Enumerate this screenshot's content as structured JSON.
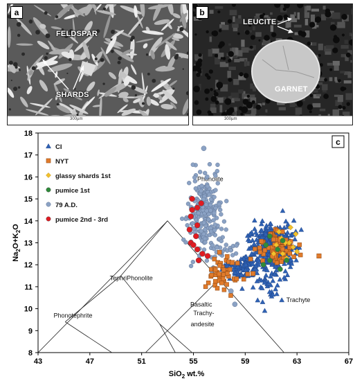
{
  "panel_a": {
    "label": "a",
    "labels": {
      "feldspar": "FELDSPAR",
      "shards": "SHARDS"
    },
    "scale": "300µm"
  },
  "panel_b": {
    "label": "b",
    "labels": {
      "leucite": "LEUCITE",
      "garnet": "GARNET"
    },
    "scale": "300µm"
  },
  "chart_data": {
    "type": "scatter",
    "panel_label": "c",
    "xlabel": "SiO2 wt.%",
    "ylabel": "Na2O+K2O",
    "xlim": [
      43,
      67
    ],
    "ylim": [
      8,
      18
    ],
    "x_ticks": [
      43,
      47,
      51,
      55,
      59,
      63,
      67
    ],
    "y_ticks": [
      8,
      9,
      10,
      11,
      12,
      13,
      14,
      15,
      16,
      17,
      18
    ],
    "grid": false,
    "legend_position": "top-left",
    "field_labels": [
      {
        "text": "Phonolite",
        "x": 56.3,
        "y": 15.8
      },
      {
        "text": "TephriPhonolite",
        "x": 50.2,
        "y": 11.3
      },
      {
        "text": "Phonotephrite",
        "x": 45.7,
        "y": 9.6
      },
      {
        "text": "Basaltic",
        "x": 55.6,
        "y": 10.1
      },
      {
        "text": "Trachy-",
        "x": 55.8,
        "y": 9.7
      },
      {
        "text": "andesite",
        "x": 55.7,
        "y": 9.2
      },
      {
        "text": "Trachyte",
        "x": 63.1,
        "y": 10.3
      }
    ],
    "tas_boundaries": [
      [
        [
          43,
          8
        ],
        [
          53,
          14
        ],
        [
          62,
          8
        ]
      ],
      [
        [
          45.1,
          9.4
        ],
        [
          48.7,
          8
        ]
      ],
      [
        [
          45.1,
          9.4
        ],
        [
          49.4,
          11.5
        ],
        [
          52.4,
          9.3
        ],
        [
          53.6,
          8
        ]
      ],
      [
        [
          49.4,
          11.5
        ],
        [
          53,
          14
        ]
      ],
      [
        [
          52.4,
          9.3
        ],
        [
          54.9,
          8
        ]
      ],
      [
        [
          51.3,
          8
        ],
        [
          57.6,
          11.7
        ]
      ]
    ],
    "series": [
      {
        "name": "CI",
        "marker": "triangle",
        "color": "#2f62b4",
        "clusters": [
          {
            "cx": 61.2,
            "cy": 12.9,
            "sx": 1.1,
            "sy": 0.65,
            "n": 420
          },
          {
            "cx": 58.8,
            "cy": 11.9,
            "sx": 0.9,
            "sy": 0.35,
            "n": 90
          },
          {
            "cx": 60.8,
            "cy": 11.0,
            "sx": 1.2,
            "sy": 0.6,
            "n": 35
          }
        ]
      },
      {
        "name": "NYT",
        "marker": "square",
        "color": "#e07b2c",
        "clusters": [
          {
            "cx": 57.4,
            "cy": 11.6,
            "sx": 0.9,
            "sy": 0.45,
            "n": 45
          },
          {
            "cx": 61.4,
            "cy": 12.8,
            "sx": 1.0,
            "sy": 0.55,
            "n": 70
          }
        ],
        "points": [
          [
            64.7,
            12.4
          ],
          [
            59.6,
            11.6
          ],
          [
            58.0,
            12.1
          ]
        ]
      },
      {
        "name": "glassy shards 1st",
        "marker": "diamond",
        "color": "#f2c12e",
        "points": [
          [
            61.8,
            13.2
          ],
          [
            62.4,
            13.0
          ],
          [
            62.7,
            12.8
          ],
          [
            61.9,
            12.5
          ],
          [
            62.9,
            13.4
          ],
          [
            61.4,
            12.9
          ],
          [
            62.2,
            12.3
          ],
          [
            61.6,
            13.5
          ],
          [
            63.0,
            12.6
          ],
          [
            62.5,
            13.7
          ],
          [
            61.2,
            12.5
          ],
          [
            62.1,
            13.0
          ]
        ]
      },
      {
        "name": "pumice 1st",
        "marker": "circle",
        "color": "#2e8b3a",
        "points": [
          [
            60.6,
            12.9
          ],
          [
            61.5,
            12.7
          ],
          [
            60.9,
            12.2
          ],
          [
            61.9,
            13.1
          ],
          [
            62.2,
            12.2
          ],
          [
            60.4,
            12.0
          ],
          [
            61.7,
            11.8
          ],
          [
            60.9,
            13.3
          ]
        ]
      },
      {
        "name": "79 A.D.",
        "marker": "circle",
        "color": "#8ba2c4",
        "clusters": [
          {
            "cx": 55.9,
            "cy": 14.3,
            "sx": 0.9,
            "sy": 1.35,
            "n": 230
          },
          {
            "cx": 57.5,
            "cy": 12.6,
            "sx": 0.8,
            "sy": 0.6,
            "n": 25
          }
        ],
        "points": [
          [
            55.8,
            17.3
          ],
          [
            58.2,
            10.2
          ],
          [
            57.9,
            10.8
          ],
          [
            59.0,
            11.5
          ]
        ]
      },
      {
        "name": "pumice 2nd - 3rd",
        "marker": "circle",
        "color": "#e01b22",
        "points": [
          [
            54.9,
            15.0
          ],
          [
            55.3,
            14.6
          ],
          [
            54.8,
            14.2
          ],
          [
            55.3,
            13.8
          ],
          [
            54.7,
            13.6
          ],
          [
            55.2,
            13.3
          ],
          [
            54.8,
            13.0
          ],
          [
            55.3,
            12.7
          ],
          [
            55.7,
            12.5
          ],
          [
            55.4,
            12.2
          ],
          [
            56.1,
            12.4
          ],
          [
            54.9,
            14.5
          ],
          [
            55.6,
            14.8
          ],
          [
            55.0,
            12.9
          ]
        ]
      }
    ]
  }
}
